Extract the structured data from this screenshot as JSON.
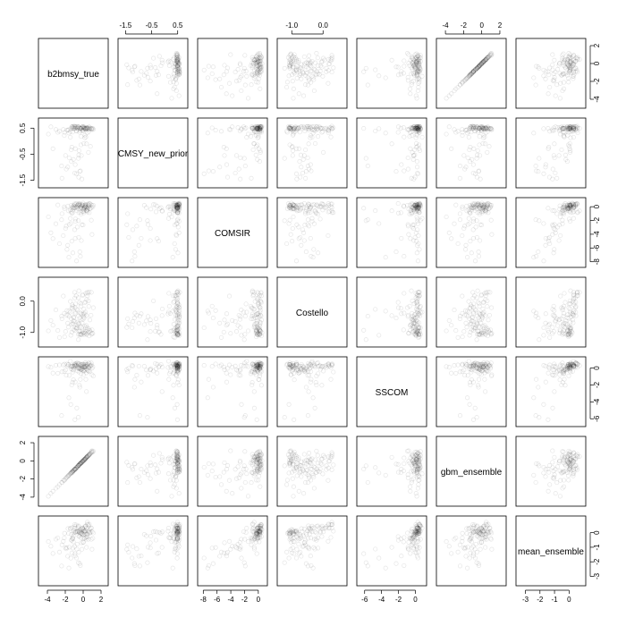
{
  "chart_data": {
    "type": "scatter",
    "matrix": true,
    "variables": [
      "b2bmsy_true",
      "CMSY_new_prior",
      "COMSIR",
      "Costello",
      "SSCOM",
      "gbm_ensemble",
      "mean_ensemble"
    ],
    "axes": [
      {
        "var": "b2bmsy_true",
        "range": [
          -4.6,
          2.4
        ],
        "ticks": [
          -4,
          -2,
          0,
          2
        ],
        "tick_labels": [
          "-4",
          "-2",
          "0",
          "2"
        ]
      },
      {
        "var": "CMSY_new_prior",
        "range": [
          -1.65,
          0.75
        ],
        "ticks": [
          -1.5,
          -0.5,
          0.5
        ],
        "tick_labels": [
          "-1.5",
          "-0.5",
          "0.5"
        ]
      },
      {
        "var": "COMSIR",
        "range": [
          -8.3,
          0.8
        ],
        "ticks": [
          -8,
          -6,
          -4,
          -2,
          0
        ],
        "tick_labels": [
          "-8",
          "-6",
          "-4",
          "-2",
          "0"
        ]
      },
      {
        "var": "Costello",
        "range": [
          -1.35,
          0.65
        ],
        "ticks": [
          -1.0,
          0.0
        ],
        "tick_labels": [
          "-1.0",
          "0.0"
        ]
      },
      {
        "var": "SSCOM",
        "range": [
          -6.5,
          0.9
        ],
        "ticks": [
          -6,
          -4,
          -2,
          0
        ],
        "tick_labels": [
          "-6",
          "-4",
          "-2",
          "0"
        ]
      },
      {
        "var": "gbm_ensemble",
        "range": [
          -4.6,
          2.3
        ],
        "ticks": [
          -4,
          -2,
          0,
          2
        ],
        "tick_labels": [
          "-4",
          "-2",
          "0",
          "2"
        ]
      },
      {
        "var": "mean_ensemble",
        "range": [
          -3.4,
          0.9
        ],
        "ticks": [
          -3,
          -2,
          -1,
          0
        ],
        "tick_labels": [
          "-3",
          "-2",
          "-1",
          "0"
        ]
      }
    ],
    "top_axis_columns": [
      1,
      3,
      5
    ],
    "bottom_axis_columns": [
      0,
      2,
      4,
      6
    ],
    "left_axis_rows": [
      1,
      3,
      5
    ],
    "right_axis_rows": [
      0,
      2,
      4,
      6
    ],
    "point_style": {
      "shape": "open-circle",
      "color": "#000000",
      "alpha": 0.1
    },
    "points": [
      [
        -0.2,
        -0.55,
        -4.92,
        -0.6,
        -0.19,
        -0.2,
        -0.69
      ],
      [
        -1.43,
        0.15,
        -1.69,
        -0.35,
        0.81,
        -1.42,
        0.31
      ],
      [
        0.46,
        0.49,
        -0.61,
        0.28,
        0.29,
        0.49,
        0.72
      ],
      [
        1.08,
        0.49,
        -0.04,
        -1.03,
        0.15,
        0.99,
        -0.39
      ],
      [
        0.91,
        0.49,
        -1.96,
        -1.06,
        0.6,
        1.04,
        -0.46
      ],
      [
        0.1,
        0.55,
        -0.49,
        -0.53,
        -0.19,
        0.08,
        -0.14
      ],
      [
        0.99,
        0.44,
        -4.04,
        -1.03,
        -0.8,
        1.11,
        -1.14
      ],
      [
        -0.27,
        0.48,
        0.04,
        -0.08,
        -0.16,
        -0.27,
        0.09
      ],
      [
        -1.19,
        0.5,
        -0.88,
        -0.23,
        -1.71,
        -1.3,
        -0.42
      ],
      [
        -0.06,
        0.41,
        0.22,
        0.18,
        0.2,
        -0.06,
        0.32
      ],
      [
        -2.83,
        0.34,
        0.26,
        -0.94,
        -0.62,
        -2.85,
        -0.36
      ],
      [
        0.3,
        0.16,
        0.03,
        0.25,
        -1.34,
        0.32,
        -0.33
      ],
      [
        -1.05,
        0.57,
        0.15,
        -0.5,
        0.2,
        -1.03,
        0.14
      ],
      [
        -1.09,
        0.52,
        0.13,
        -0.92,
        -1.39,
        -1.1,
        -0.63
      ],
      [
        -1.7,
        0.42,
        0.1,
        -0.45,
        0.37,
        -1.66,
        0.28
      ],
      [
        -1.28,
        0.55,
        -0.93,
        -0.21,
        -2.01,
        -1.26,
        -0.52
      ],
      [
        0.41,
        0.52,
        -0.11,
        -1.07,
        0.4,
        0.43,
        -0.09
      ],
      [
        -2.22,
        0.45,
        -4.2,
        0.16,
        0.36,
        -2.16,
        -0.59
      ],
      [
        0.59,
        0.47,
        -0.15,
        -0.99,
        -0.37,
        0.54,
        -0.46
      ],
      [
        0.92,
        0.46,
        -0.12,
        0.28,
        0.36,
        0.91,
        0.32
      ],
      [
        0.64,
        0.37,
        0.19,
        -0.89,
        0.05,
        0.65,
        0.11
      ],
      [
        -2.11,
        0.22,
        -0.02,
        -0.39,
        -0.41,
        -2.14,
        -0.36
      ],
      [
        -1.56,
        -0.64,
        -2.59,
        -0.49,
        -0.88,
        -1.52,
        -1.0
      ],
      [
        0.59,
        -0.43,
        0.3,
        0.01,
        -0.36,
        0.6,
        0.06
      ],
      [
        0.37,
        -0.1,
        -0.59,
        -0.46,
        -2.79,
        0.39,
        -1.01
      ],
      [
        0.52,
        0.52,
        0.39,
        0.25,
        0.05,
        0.53,
        0.56
      ],
      [
        -0.48,
        0.51,
        -0.85,
        0.33,
        -0.47,
        -0.45,
        0.1
      ],
      [
        -0.91,
        0.56,
        0.29,
        -0.2,
        0.53,
        -0.88,
        0.44
      ],
      [
        -0.53,
        0.44,
        0.03,
        0.11,
        0.06,
        -0.54,
        0.42
      ],
      [
        -1.43,
        0.37,
        -0.48,
        -0.01,
        0.21,
        -1.44,
        0.25
      ],
      [
        -0.49,
        -0.53,
        -0.34,
        -0.71,
        -0.07,
        -0.5,
        -0.24
      ],
      [
        -0.66,
        0.52,
        -2.96,
        -0.78,
        -0.34,
        -0.65,
        -0.79
      ],
      [
        -0.22,
        0.5,
        -0.82,
        -0.41,
        0.45,
        -0.21,
        0.26
      ],
      [
        -0.08,
        0.56,
        -0.31,
        -0.43,
        -0.1,
        -0.12,
        -0.09
      ],
      [
        -0.87,
        0.55,
        -2.13,
        -0.35,
        0.24,
        -0.91,
        0.07
      ],
      [
        0.47,
        0.32,
        -0.76,
        0.17,
        0.46,
        0.45,
        0.59
      ],
      [
        -0.31,
        -1.14,
        -7.21,
        -0.38,
        -1.34,
        -0.31,
        -2.26
      ],
      [
        -0.41,
        0.34,
        0.46,
        -0.04,
        -2.04,
        -0.39,
        -0.27
      ],
      [
        0.35,
        0.51,
        -0.53,
        -0.78,
        -0.57,
        0.34,
        -0.45
      ],
      [
        0.68,
        0.49,
        -0.86,
        0.29,
        0.49,
        0.71,
        0.58
      ],
      [
        0.03,
        0.44,
        -0.35,
        -1.02,
        -0.79,
        -0.04,
        -0.65
      ],
      [
        1.14,
        0.45,
        0.22,
        -0.21,
        -0.94,
        1.08,
        -0.02
      ],
      [
        0.17,
        0.49,
        -0.18,
        -0.8,
        -0.28,
        0.14,
        -0.37
      ],
      [
        -1.18,
        0.56,
        -0.19,
        -0.7,
        -0.18,
        -1.18,
        -0.34
      ],
      [
        0.38,
        0.49,
        0.18,
        -1.05,
        -0.14,
        0.4,
        -0.28
      ],
      [
        -0.15,
        0.51,
        0.08,
        -1.08,
        0.09,
        -0.16,
        -0.03
      ],
      [
        -1.33,
        -0.33,
        -0.75,
        -0.56,
        -0.09,
        -1.36,
        -0.51
      ],
      [
        -0.86,
        0.51,
        -1.79,
        -0.09,
        0.26,
        -0.89,
        0.01
      ],
      [
        0.07,
        0.49,
        -0.89,
        -0.48,
        -0.36,
        0.03,
        -0.39
      ],
      [
        0.67,
        0.55,
        0.43,
        -1.11,
        0.11,
        0.66,
        0.01
      ],
      [
        -0.1,
        0.44,
        0.25,
        -0.95,
        -0.05,
        -0.05,
        -0.1
      ],
      [
        0.18,
        0.13,
        -0.09,
        -0.41,
        0.07,
        0.19,
        0.1
      ],
      [
        0.25,
        0.46,
        0.26,
        -0.35,
        0.63,
        0.23,
        0.45
      ],
      [
        1.0,
        0.48,
        0.19,
        -0.92,
        -0.03,
        0.98,
        0.06
      ],
      [
        0.63,
        0.46,
        0.11,
        -0.17,
        0.61,
        0.6,
        0.47
      ],
      [
        0.08,
        -0.09,
        -0.66,
        -0.25,
        0.11,
        0.13,
        0.05
      ],
      [
        0.47,
        0.48,
        -0.34,
        -0.92,
        0.22,
        0.52,
        -0.11
      ],
      [
        -2.08,
        0.34,
        -0.28,
        -1.14,
        0.46,
        -2.13,
        -0.04
      ],
      [
        0.28,
        0.45,
        -0.05,
        -0.85,
        0.45,
        0.27,
        0.14
      ],
      [
        0.27,
        0.49,
        0.33,
        -0.03,
        0.19,
        0.23,
        0.45
      ],
      [
        0.88,
        0.48,
        0.3,
        -0.45,
        0.24,
        0.86,
        0.32
      ],
      [
        -0.01,
        0.39,
        -2.66,
        -0.58,
        -0.31,
        -0.01,
        -0.66
      ],
      [
        -0.52,
        0.55,
        0.4,
        -0.47,
        0.54,
        -0.49,
        0.47
      ],
      [
        0.75,
        0.51,
        0.48,
        -0.6,
        -0.39,
        0.72,
        0.25
      ],
      [
        -0.23,
        0.18,
        -1.08,
        -0.16,
        -0.68,
        -0.24,
        -0.36
      ],
      [
        0.74,
        0.47,
        -0.26,
        -0.94,
        0.32,
        0.75,
        -0.04
      ],
      [
        -1.22,
        0.55,
        -0.03,
        -0.12,
        0.26,
        -1.2,
        0.34
      ],
      [
        -0.34,
        0.5,
        -0.11,
        -1.08,
        0.02,
        -0.31,
        -0.14
      ],
      [
        -0.02,
        0.56,
        0.54,
        -1.01,
        0.48,
        0.01,
        0.22
      ],
      [
        -1.17,
        0.35,
        -0.51,
        -0.74,
        -0.48,
        -1.16,
        -0.4
      ],
      [
        -0.24,
        0.49,
        -0.17,
        -1.05,
        0.25,
        -0.19,
        -0.04
      ],
      [
        -0.53,
        0.55,
        0.26,
        -1.06,
        0.4,
        -0.5,
        0.09
      ],
      [
        0.12,
        0.52,
        0.19,
        -1.07,
        0.44,
        0.1,
        0.14
      ],
      [
        -0.93,
        0.5,
        -0.13,
        0.1,
        0.34,
        -0.96,
        0.31
      ],
      [
        -0.25,
        -0.14,
        -0.13,
        -1.06,
        0.42,
        -0.26,
        -0.05
      ],
      [
        0.14,
        0.5,
        0.01,
        -0.05,
        0.11,
        0.16,
        0.34
      ],
      [
        0.23,
        0.47,
        0.16,
        -1.02,
        0.3,
        0.24,
        0.07
      ],
      [
        -0.35,
        0.49,
        0.24,
        -0.81,
        -0.13,
        -0.32,
        0.02
      ],
      [
        -0.62,
        0.56,
        0.3,
        -0.29,
        0.21,
        -0.66,
        0.34
      ],
      [
        -0.88,
        -0.29,
        0.08,
        -0.85,
        0.45,
        -0.87,
        0.04
      ],
      [
        -1.64,
        0.44,
        -0.6,
        -0.83,
        0.4,
        -1.64,
        -0.05
      ],
      [
        -0.67,
        0.5,
        -0.22,
        -0.85,
        0.6,
        -0.71,
        0.1
      ],
      [
        -0.06,
        0.51,
        -0.7,
        0.21,
        0.26,
        -0.03,
        0.33
      ],
      [
        -0.4,
        0.51,
        0.19,
        -1.05,
        -0.02,
        -0.37,
        -0.01
      ],
      [
        0.81,
        -0.2,
        -0.26,
        -0.98,
        0.24,
        0.82,
        0.02
      ],
      [
        -0.96,
        0.58,
        0.41,
        0.28,
        0.44,
        -0.98,
        0.55
      ],
      [
        -0.33,
        0.4,
        0.36,
        -0.97,
        0.33,
        -0.33,
        0.18
      ],
      [
        -1.09,
        -0.7,
        -0.14,
        -0.63,
        -0.24,
        -1.08,
        -0.22
      ],
      [
        0.47,
        0.51,
        -0.43,
        -0.85,
        -0.25,
        0.49,
        -0.29
      ],
      [
        -0.78,
        0.4,
        0.46,
        0.17,
        0.5,
        -0.79,
        0.53
      ],
      [
        0.21,
        0.23,
        -0.33,
        -0.96,
        0.17,
        0.23,
        -0.09
      ],
      [
        -0.65,
        0.49,
        0.22,
        -0.67,
        -0.02,
        -0.63,
        0.08
      ],
      [
        -0.11,
        0.54,
        0.35,
        -0.69,
        0.43,
        -0.1,
        0.28
      ],
      [
        0.39,
        0.48,
        -0.12,
        0.05,
        0.17,
        0.41,
        0.31
      ],
      [
        0.04,
        0.53,
        -0.19,
        -0.4,
        0.36,
        0.06,
        0.21
      ],
      [
        -0.76,
        0.55,
        -0.02,
        -0.88,
        0.34,
        -0.78,
        0.06
      ],
      [
        -1.32,
        -0.78,
        0.2,
        -0.75,
        0.2,
        -1.3,
        -0.12
      ],
      [
        0.19,
        0.49,
        -0.01,
        -1.01,
        0.17,
        0.16,
        0.02
      ],
      [
        -0.46,
        -0.36,
        0.28,
        -0.96,
        0.53,
        -0.44,
        0.09
      ],
      [
        -1.06,
        0.48,
        -0.17,
        -0.54,
        0.01,
        -1.04,
        -0.02
      ],
      [
        -0.5,
        -1.38,
        -4.47,
        -0.73,
        -0.04,
        -0.52,
        -1.34
      ],
      [
        -0.95,
        -1.22,
        -3.35,
        -0.65,
        0.23,
        -0.93,
        -0.95
      ],
      [
        -2.41,
        -0.95,
        -1.89,
        -0.48,
        -5.62,
        -2.38,
        -2.29
      ],
      [
        -1.81,
        0.42,
        -6.21,
        -0.3,
        0.48,
        -1.79,
        -1.02
      ],
      [
        -1.27,
        -0.23,
        -5.01,
        -0.99,
        0.12,
        -1.26,
        -1.39
      ],
      [
        -3.05,
        0.45,
        -2.48,
        -0.28,
        0.31,
        -3.02,
        -0.45
      ],
      [
        -0.14,
        -1.45,
        -2.62,
        -0.84,
        -0.18,
        -0.15,
        -1.14
      ],
      [
        -0.92,
        0.49,
        -0.22,
        -0.93,
        -6.11,
        -0.9,
        -1.44
      ],
      [
        -1.73,
        -0.99,
        -5.61,
        -0.7,
        0.21,
        -1.74,
        -1.62
      ],
      [
        -3.61,
        0.55,
        -3.79,
        -0.62,
        0.09,
        -3.58,
        -0.93
      ],
      [
        -1.38,
        0.48,
        -2.45,
        -1.09,
        -4.31,
        -1.34,
        -1.75
      ],
      [
        -0.89,
        -0.9,
        -4.59,
        -0.4,
        -1.66,
        -0.91,
        -1.6
      ],
      [
        -0.38,
        -1.16,
        -6.56,
        -0.54,
        -2.27,
        -0.35,
        -2.12
      ],
      [
        -1.15,
        0.51,
        -6.72,
        -0.16,
        0.19,
        -1.12,
        -1.06
      ],
      [
        -1.97,
        -0.55,
        -3.16,
        -0.97,
        -0.23,
        -1.96,
        -1.05
      ],
      [
        -2.65,
        0.38,
        -5.37,
        -1.16,
        0.36,
        -2.62,
        -1.33
      ],
      [
        -0.74,
        -1.25,
        -7.88,
        -0.85,
        0.31,
        -0.71,
        -1.74
      ],
      [
        -2.37,
        -1.42,
        -1.02,
        -0.56,
        -0.45,
        -2.39,
        -0.84
      ],
      [
        -1.6,
        0.31,
        -7.35,
        -0.32,
        -3.52,
        -1.58,
        -2.43
      ],
      [
        -0.54,
        -0.66,
        -2.04,
        -1.23,
        -5.83,
        -0.55,
        -2.06
      ],
      [
        -3.38,
        -0.29,
        -4.63,
        -0.77,
        -0.6,
        -3.35,
        -1.43
      ],
      [
        -0.71,
        0.39,
        -0.58,
        -0.26,
        -4.73,
        -0.74,
        -1.13
      ],
      [
        -1.89,
        -1.07,
        -2.81,
        -0.45,
        -0.86,
        -1.87,
        -1.11
      ],
      [
        -3.89,
        0.27,
        -1.47,
        -0.95,
        0.17,
        -3.9,
        -0.61
      ]
    ]
  }
}
